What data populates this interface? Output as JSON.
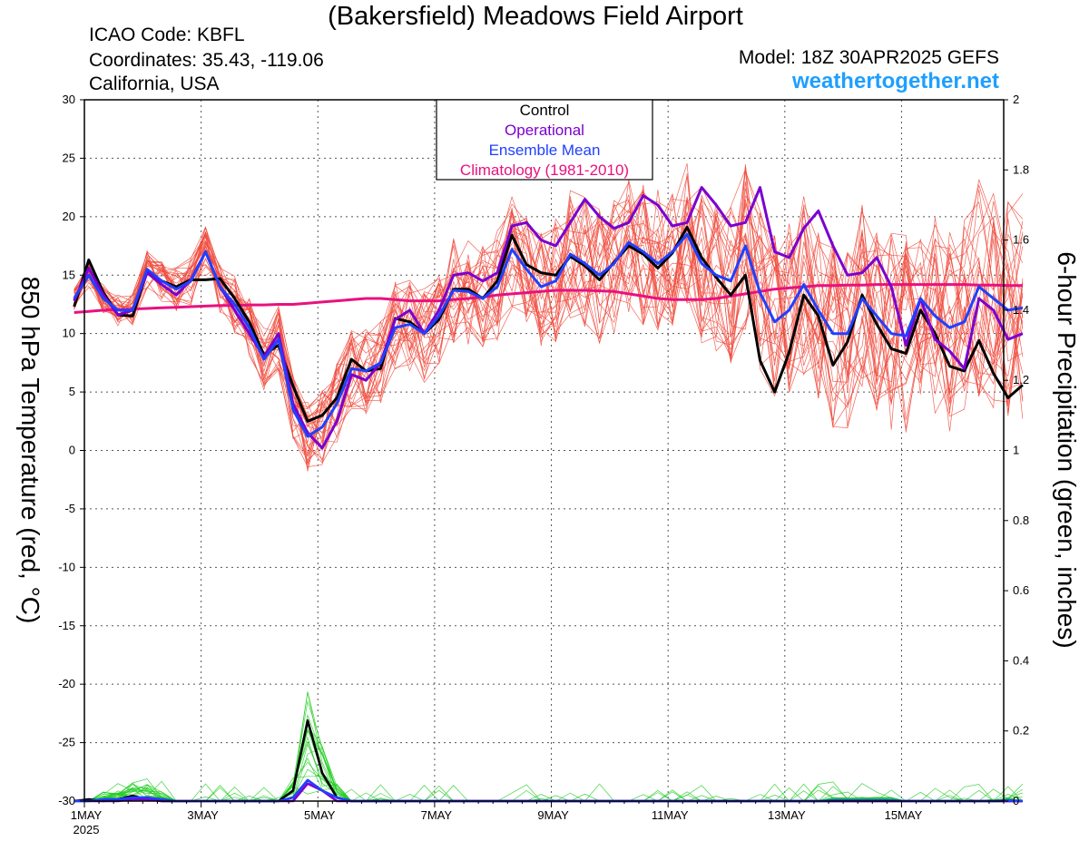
{
  "header": {
    "title": "(Bakersfield) Meadows Field Airport",
    "icao": "ICAO Code: KBFL",
    "coordinates": "Coordinates: 35.43, -119.06",
    "location": "California, USA",
    "model": "Model: 18Z 30APR2025 GEFS",
    "site": "weathertogether.net"
  },
  "colors": {
    "control": "#000000",
    "operational": "#7a00d0",
    "ensemble_mean": "#2040ff",
    "climatology": "#e8117f",
    "members_temp": "#f04a3c",
    "members_precip": "#22cc22",
    "site": "#1e9fff"
  },
  "chart_data": {
    "type": "line",
    "xlabel": "",
    "ylabel": "850 hPa Temperature (red, °C)",
    "y2label": "6-hour Precipitation (green, inches)",
    "x_range": [
      0,
      63
    ],
    "x_unit": "6-hour steps from 00Z 1MAY2025",
    "ylim": [
      -30,
      30
    ],
    "y2lim": [
      0,
      2
    ],
    "y_ticks": [
      "30",
      "25",
      "20",
      "15",
      "10",
      "5",
      "0",
      "-5",
      "-10",
      "-15",
      "-20",
      "-25",
      "-30"
    ],
    "y2_ticks": [
      "2",
      "1.8",
      "1.6",
      "1.4",
      "1.2",
      "1",
      "0.8",
      "0.6",
      "0.4",
      "0.2",
      "0"
    ],
    "x_ticks": [
      {
        "x": 0,
        "label": "1MAY",
        "sub": "2025"
      },
      {
        "x": 8,
        "label": "3MAY",
        "sub": ""
      },
      {
        "x": 16,
        "label": "5MAY",
        "sub": ""
      },
      {
        "x": 24,
        "label": "7MAY",
        "sub": ""
      },
      {
        "x": 32,
        "label": "9MAY",
        "sub": ""
      },
      {
        "x": 40,
        "label": "11MAY",
        "sub": ""
      },
      {
        "x": 48,
        "label": "13MAY",
        "sub": ""
      },
      {
        "x": 56,
        "label": "15MAY",
        "sub": ""
      }
    ],
    "grid": true,
    "legend": {
      "position": "top-center",
      "entries": [
        "Control",
        "Operational",
        "Ensemble Mean",
        "Climatology (1981-2010)"
      ]
    },
    "x0": -0.7,
    "temperature_series": [
      {
        "name": "Control",
        "values": [
          12.3,
          16.3,
          13.5,
          11.6,
          11.5,
          15.3,
          14.5,
          14.0,
          14.6,
          14.6,
          14.7,
          13.0,
          11.0,
          8.2,
          9.0,
          5.5,
          2.5,
          3.0,
          4.5,
          7.8,
          6.8,
          7.0,
          11.3,
          11.0,
          10.0,
          11.2,
          13.8,
          13.8,
          13.0,
          14.5,
          18.4,
          15.9,
          15.2,
          15.0,
          16.6,
          15.8,
          14.6,
          16.1,
          17.5,
          16.8,
          15.6,
          16.9,
          19.1,
          16.5,
          14.8,
          13.3,
          15.0,
          7.7,
          5.0,
          8.4,
          13.3,
          11.5,
          7.3,
          9.3,
          13.3,
          10.8,
          8.7,
          8.3,
          12.0,
          10.0,
          7.2,
          6.8,
          9.4,
          6.6,
          4.5,
          5.6
        ]
      },
      {
        "name": "Operational",
        "values": [
          12.8,
          15.6,
          13.3,
          11.6,
          12.0,
          15.2,
          14.2,
          13.3,
          14.6,
          17.0,
          14.0,
          12.0,
          10.0,
          8.0,
          10.0,
          4.0,
          1.5,
          0.2,
          2.5,
          6.5,
          6.0,
          7.5,
          11.2,
          12.0,
          10.0,
          12.0,
          15.0,
          15.2,
          14.5,
          15.2,
          19.2,
          19.5,
          18.0,
          17.5,
          19.5,
          21.5,
          20.0,
          19.0,
          19.5,
          21.8,
          21.0,
          19.2,
          19.5,
          22.5,
          21.0,
          19.2,
          19.5,
          22.5,
          17.0,
          16.5,
          19.0,
          20.5,
          17.5,
          15.0,
          15.2,
          16.5,
          14.0,
          9.0,
          13.0,
          9.5,
          8.5,
          7.0,
          13.0,
          12.0,
          9.5,
          10.0
        ]
      },
      {
        "name": "Ensemble Mean",
        "values": [
          13.0,
          15.0,
          13.0,
          12.0,
          12.0,
          15.5,
          14.5,
          13.8,
          14.5,
          17.0,
          14.0,
          12.5,
          10.5,
          7.8,
          9.5,
          3.5,
          1.2,
          2.0,
          4.0,
          7.0,
          6.8,
          7.5,
          10.5,
          10.8,
          10.0,
          11.5,
          13.7,
          13.6,
          13.0,
          14.0,
          17.2,
          15.5,
          14.0,
          14.5,
          16.8,
          16.0,
          15.0,
          16.0,
          17.8,
          17.0,
          16.0,
          17.0,
          18.5,
          16.0,
          15.0,
          14.5,
          17.5,
          13.5,
          11.0,
          12.0,
          14.2,
          12.0,
          10.0,
          10.0,
          13.0,
          11.5,
          10.0,
          9.8,
          13.0,
          11.5,
          10.5,
          11.0,
          14.0,
          13.0,
          12.0,
          12.2
        ]
      },
      {
        "name": "Climatology (1981-2010)",
        "values": [
          11.8,
          11.9,
          12.0,
          12.05,
          12.1,
          12.15,
          12.2,
          12.25,
          12.3,
          12.35,
          12.4,
          12.4,
          12.45,
          12.45,
          12.5,
          12.5,
          12.6,
          12.7,
          12.8,
          12.9,
          13.0,
          13.0,
          12.9,
          12.8,
          12.8,
          12.8,
          12.9,
          13.0,
          13.1,
          13.3,
          13.4,
          13.5,
          13.6,
          13.7,
          13.7,
          13.7,
          13.65,
          13.6,
          13.4,
          13.2,
          13.0,
          12.9,
          12.9,
          12.9,
          13.0,
          13.2,
          13.4,
          13.6,
          13.8,
          13.9,
          14.0,
          14.1,
          14.1,
          14.15,
          14.15,
          14.2,
          14.2,
          14.2,
          14.2,
          14.2,
          14.2,
          14.2,
          14.15,
          14.15,
          14.1,
          14.1
        ]
      }
    ],
    "precipitation_series": [
      {
        "name": "Control",
        "values": [
          0,
          0.005,
          0,
          0.005,
          0.015,
          0.005,
          0,
          0,
          0,
          0,
          0,
          0,
          0,
          0,
          0,
          0.03,
          0.23,
          0.08,
          0.01,
          0,
          0,
          0,
          0,
          0,
          0,
          0,
          0,
          0,
          0,
          0,
          0,
          0,
          0,
          0,
          0,
          0,
          0,
          0,
          0,
          0,
          0,
          0,
          0,
          0,
          0,
          0,
          0,
          0,
          0,
          0,
          0,
          0,
          0,
          0,
          0,
          0,
          0,
          0,
          0,
          0,
          0,
          0,
          0,
          0,
          0,
          0
        ]
      },
      {
        "name": "Operational",
        "values": [
          0,
          0,
          0,
          0,
          0.005,
          0.005,
          0,
          0,
          0,
          0,
          0,
          0,
          0,
          0,
          0,
          0,
          0.05,
          0.03,
          0,
          0,
          0,
          0,
          0,
          0,
          0,
          0,
          0,
          0,
          0,
          0,
          0,
          0,
          0,
          0,
          0,
          0,
          0,
          0,
          0,
          0,
          0,
          0,
          0,
          0,
          0,
          0,
          0,
          0,
          0,
          0,
          0,
          0,
          0,
          0,
          0,
          0,
          0,
          0,
          0,
          0,
          0,
          0,
          0,
          0,
          0,
          0
        ]
      },
      {
        "name": "Ensemble Mean",
        "values": [
          0,
          0,
          0.005,
          0.005,
          0.01,
          0.01,
          0.005,
          0,
          0,
          0,
          0,
          0,
          0,
          0,
          0,
          0.01,
          0.06,
          0.03,
          0.01,
          0,
          0,
          0,
          0,
          0,
          0,
          0,
          0,
          0,
          0,
          0,
          0,
          0,
          0,
          0,
          0,
          0,
          0,
          0,
          0,
          0,
          0,
          0,
          0,
          0,
          0,
          0,
          0,
          0,
          0,
          0,
          0,
          0,
          0.002,
          0.002,
          0.002,
          0.002,
          0.002,
          0,
          0,
          0,
          0,
          0,
          0,
          0,
          0.002,
          0
        ]
      }
    ]
  }
}
